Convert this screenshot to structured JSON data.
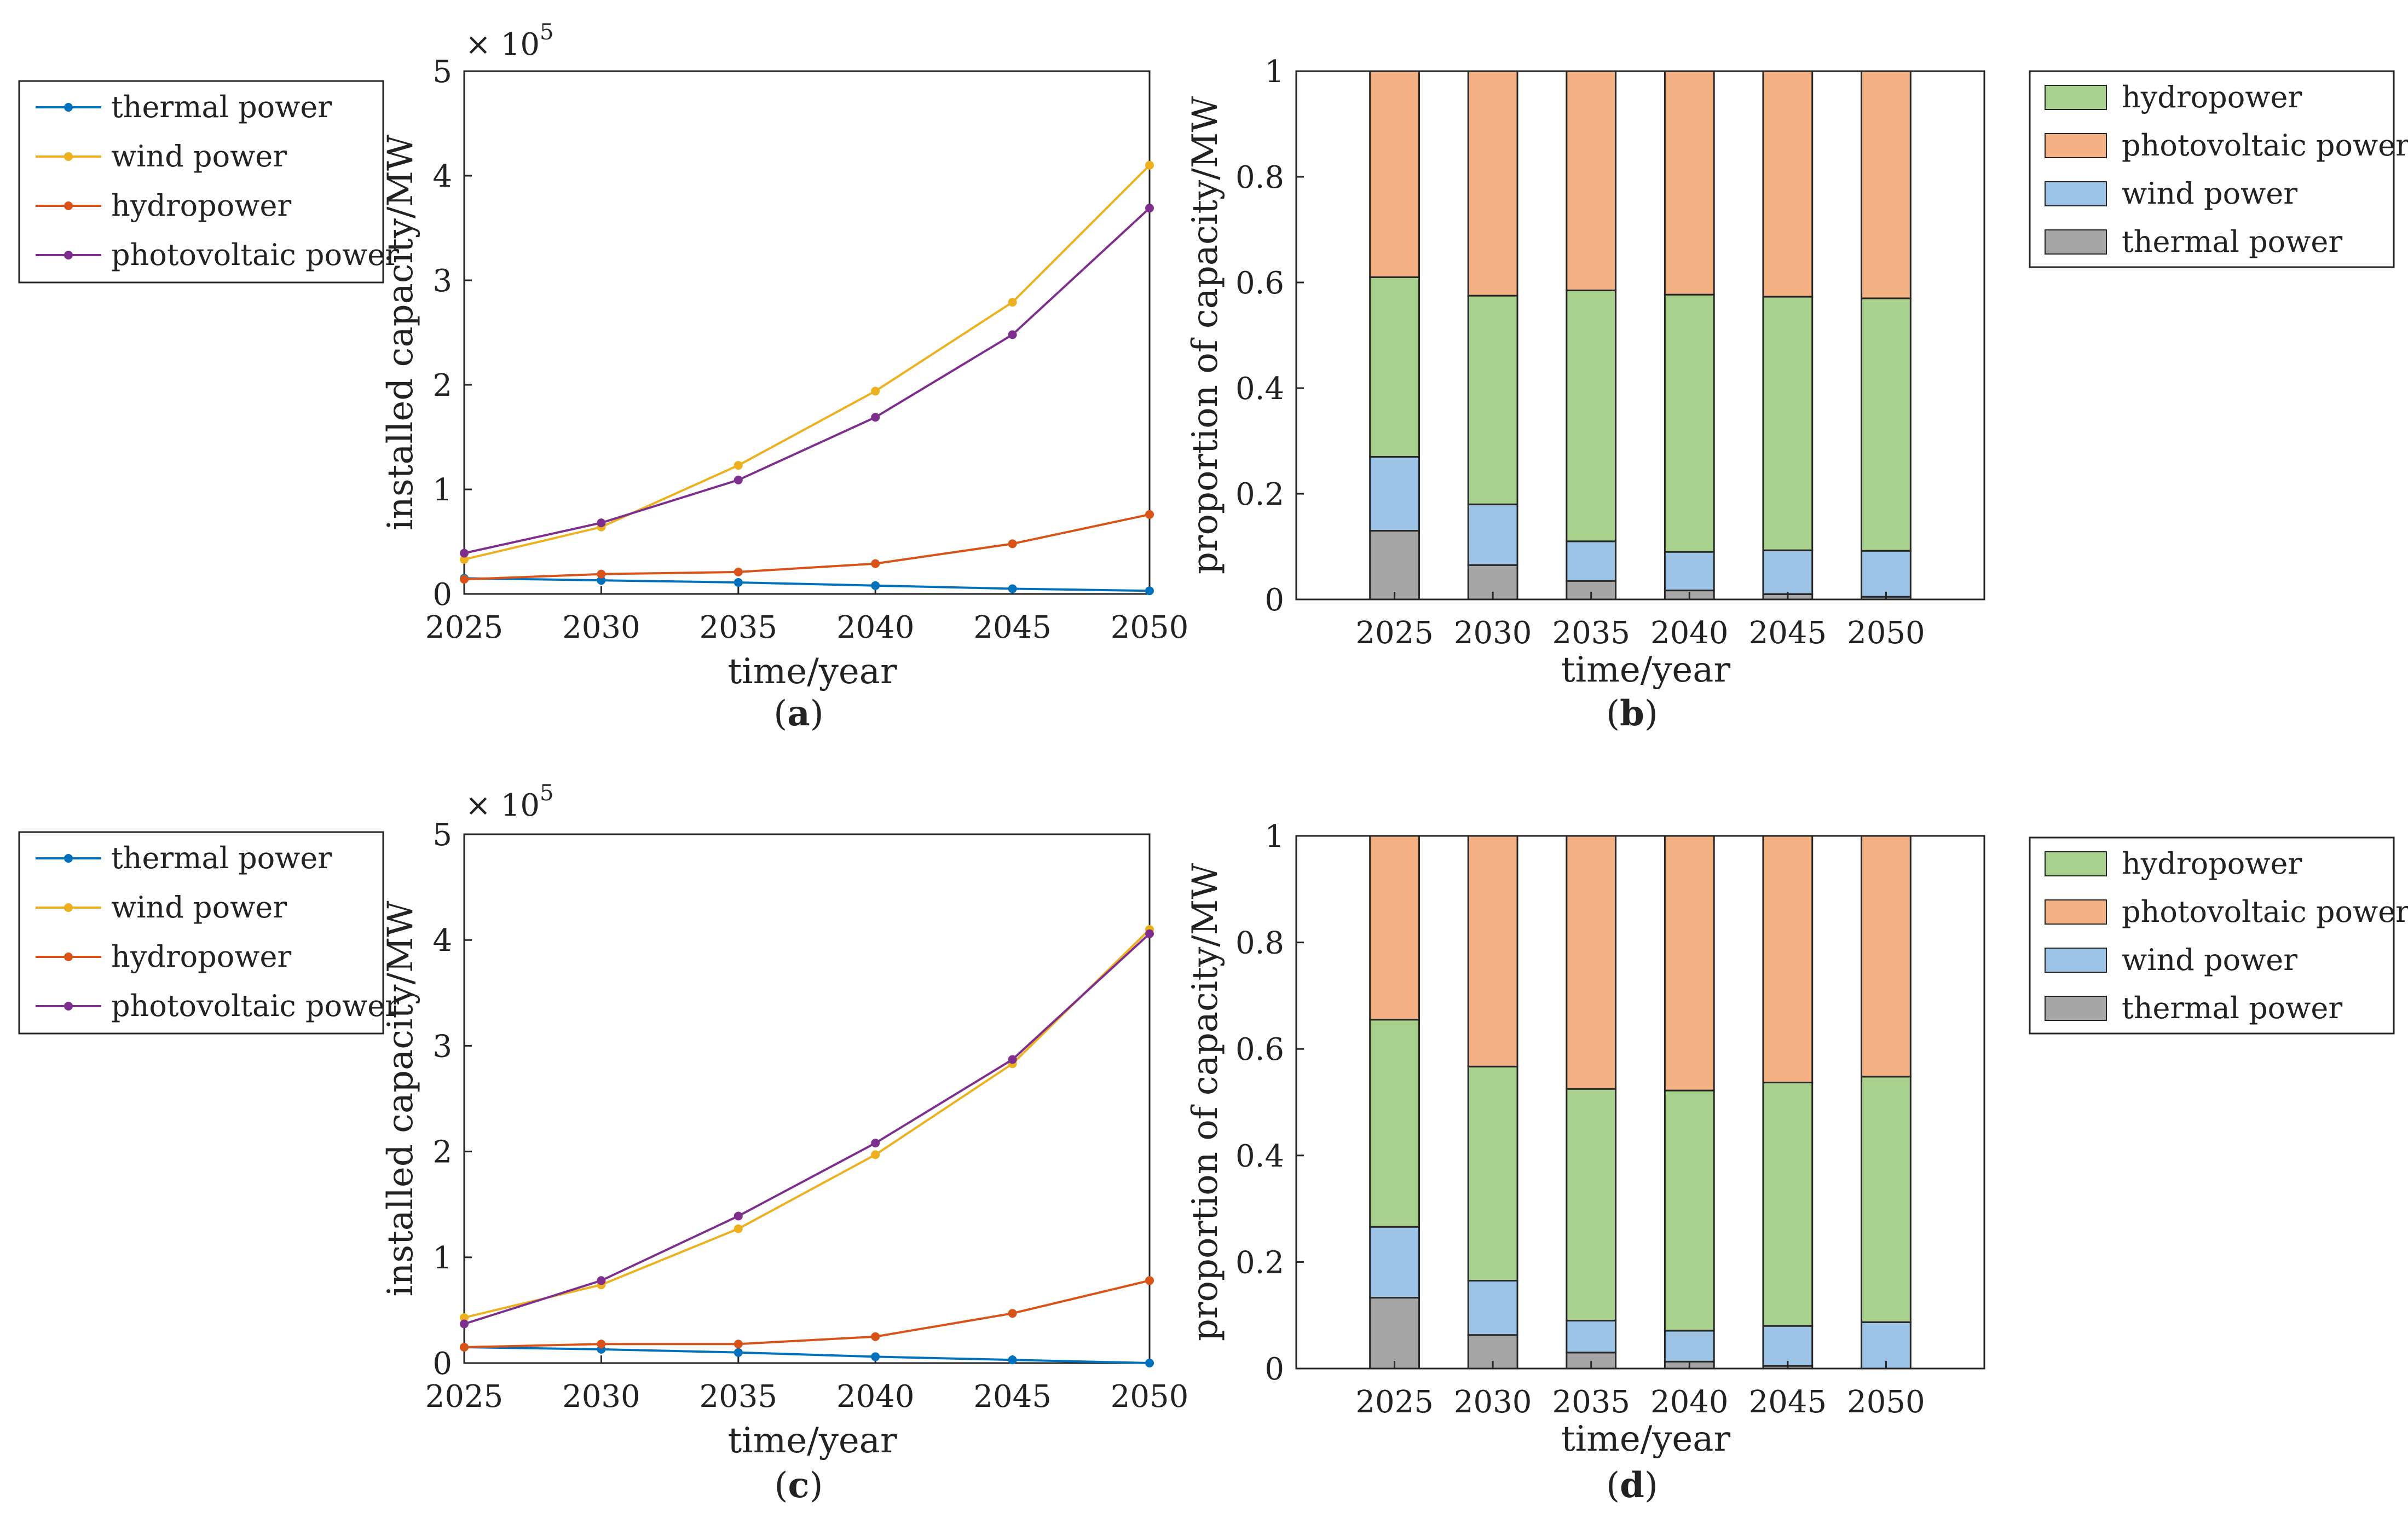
{
  "colors": {
    "thermal_line": "#0072BD",
    "wind_line": "#EDB120",
    "hydro_line": "#D95319",
    "pv_line": "#7E2F8E",
    "hydro_fill": "#A9D18E",
    "pv_fill": "#F4B183",
    "wind_fill": "#9DC3E6",
    "thermal_fill": "#A6A6A6"
  },
  "chart_data": [
    {
      "id": "a",
      "type": "line",
      "caption_open": "(",
      "caption_letter": "a",
      "caption_close": ")",
      "xlabel": "time/year",
      "ylabel": "installed capacity/MW",
      "multiplier_prefix": "× 10",
      "multiplier_exp": "5",
      "x": [
        2025,
        2030,
        2035,
        2040,
        2045,
        2050
      ],
      "xticks": [
        "2025",
        "2030",
        "2035",
        "2040",
        "2045",
        "2050"
      ],
      "ylim": [
        0,
        5
      ],
      "yticks": [
        "0",
        "1",
        "2",
        "3",
        "4",
        "5"
      ],
      "legend": [
        "thermal power",
        "wind power",
        "hydropower",
        "photovoltaic power"
      ],
      "series": [
        {
          "name": "thermal power",
          "values": [
            0.15,
            0.13,
            0.11,
            0.08,
            0.05,
            0.03
          ]
        },
        {
          "name": "wind power",
          "values": [
            0.33,
            0.64,
            1.23,
            1.94,
            2.79,
            4.1
          ]
        },
        {
          "name": "hydropower",
          "values": [
            0.14,
            0.19,
            0.21,
            0.29,
            0.48,
            0.76
          ]
        },
        {
          "name": "photovoltaic power",
          "values": [
            0.39,
            0.68,
            1.09,
            1.69,
            2.48,
            3.69
          ]
        }
      ]
    },
    {
      "id": "b",
      "type": "bar",
      "stacked": true,
      "caption_open": "(",
      "caption_letter": "b",
      "caption_close": ")",
      "xlabel": "time/year",
      "ylabel": "proportion of capacity/MW",
      "categories": [
        "2025",
        "2030",
        "2035",
        "2040",
        "2045",
        "2050"
      ],
      "ylim": [
        0,
        1
      ],
      "yticks": [
        "0",
        "0.2",
        "0.4",
        "0.6",
        "0.8",
        "1"
      ],
      "legend": [
        "hydropower",
        "photovoltaic power",
        "wind power",
        "thermal power"
      ],
      "series": [
        {
          "name": "thermal power",
          "values": [
            0.13,
            0.065,
            0.035,
            0.017,
            0.01,
            0.005
          ]
        },
        {
          "name": "wind power",
          "values": [
            0.14,
            0.115,
            0.075,
            0.073,
            0.083,
            0.087
          ]
        },
        {
          "name": "hydropower",
          "values": [
            0.34,
            0.395,
            0.475,
            0.487,
            0.48,
            0.478
          ]
        },
        {
          "name": "photovoltaic power",
          "values": [
            0.39,
            0.425,
            0.415,
            0.423,
            0.427,
            0.43
          ]
        }
      ]
    },
    {
      "id": "c",
      "type": "line",
      "caption_open": "(",
      "caption_letter": "c",
      "caption_close": ")",
      "xlabel": "time/year",
      "ylabel": "installed capacity/MW",
      "multiplier_prefix": "× 10",
      "multiplier_exp": "5",
      "x": [
        2025,
        2030,
        2035,
        2040,
        2045,
        2050
      ],
      "xticks": [
        "2025",
        "2030",
        "2035",
        "2040",
        "2045",
        "2050"
      ],
      "ylim": [
        0,
        5
      ],
      "yticks": [
        "0",
        "1",
        "2",
        "3",
        "4",
        "5"
      ],
      "legend": [
        "thermal power",
        "wind power",
        "hydropower",
        "photovoltaic power"
      ],
      "series": [
        {
          "name": "thermal power",
          "values": [
            0.15,
            0.13,
            0.1,
            0.06,
            0.03,
            0.0
          ]
        },
        {
          "name": "wind power",
          "values": [
            0.43,
            0.74,
            1.27,
            1.97,
            2.83,
            4.1
          ]
        },
        {
          "name": "hydropower",
          "values": [
            0.15,
            0.18,
            0.18,
            0.25,
            0.47,
            0.78
          ]
        },
        {
          "name": "photovoltaic power",
          "values": [
            0.37,
            0.78,
            1.39,
            2.08,
            2.87,
            4.06
          ]
        }
      ]
    },
    {
      "id": "d",
      "type": "bar",
      "stacked": true,
      "caption_open": "(",
      "caption_letter": "d",
      "caption_close": ")",
      "xlabel": "time/year",
      "ylabel": "proportion of capacity/MW",
      "categories": [
        "2025",
        "2030",
        "2035",
        "2040",
        "2045",
        "2050"
      ],
      "ylim": [
        0,
        1
      ],
      "yticks": [
        "0",
        "0.2",
        "0.4",
        "0.6",
        "0.8",
        "1"
      ],
      "legend": [
        "hydropower",
        "photovoltaic power",
        "wind power",
        "thermal power"
      ],
      "series": [
        {
          "name": "thermal power",
          "values": [
            0.133,
            0.063,
            0.03,
            0.013,
            0.005,
            0.0
          ]
        },
        {
          "name": "wind power",
          "values": [
            0.133,
            0.102,
            0.06,
            0.058,
            0.075,
            0.087
          ]
        },
        {
          "name": "hydropower",
          "values": [
            0.389,
            0.402,
            0.435,
            0.451,
            0.457,
            0.461
          ]
        },
        {
          "name": "photovoltaic power",
          "values": [
            0.345,
            0.433,
            0.475,
            0.478,
            0.463,
            0.452
          ]
        }
      ]
    }
  ]
}
